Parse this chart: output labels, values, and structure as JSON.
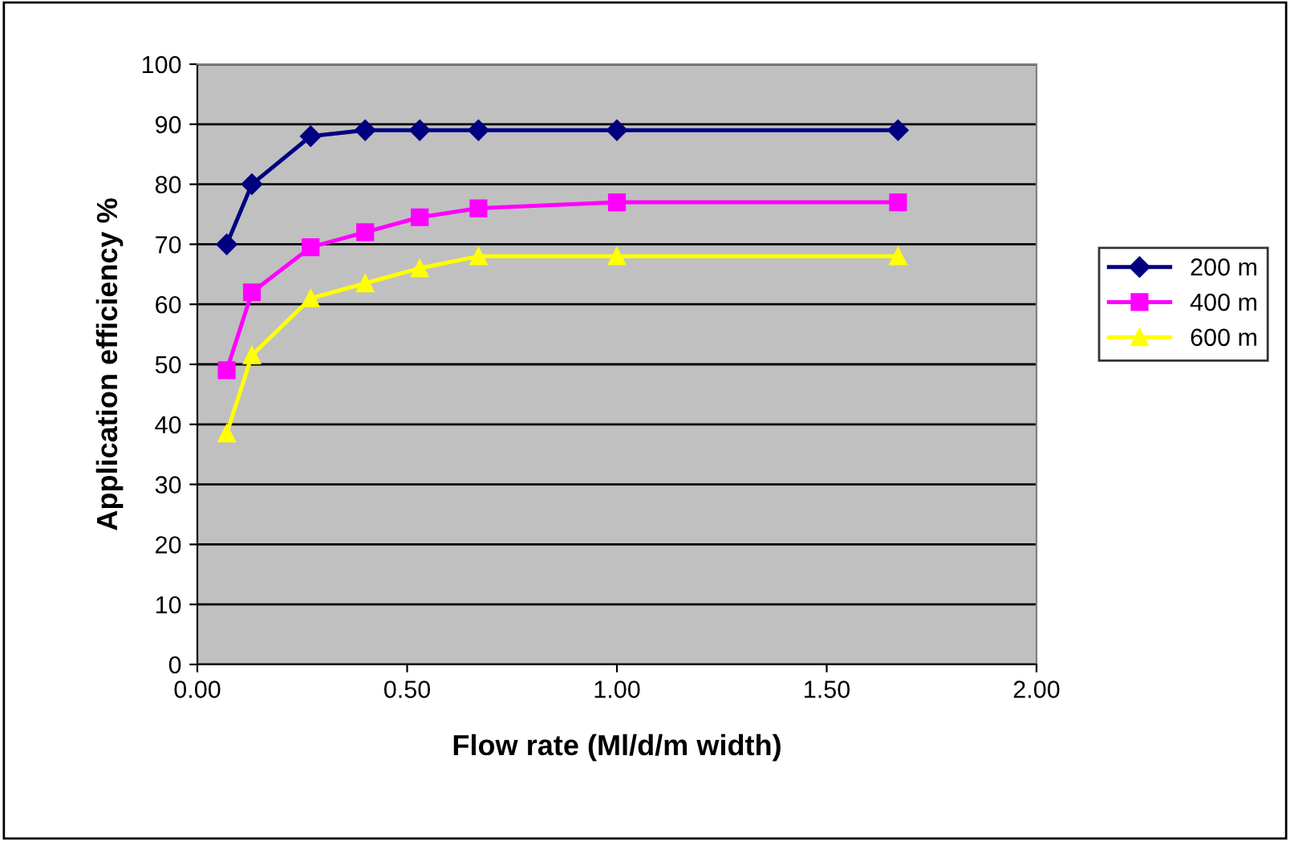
{
  "chart_data": {
    "type": "line",
    "xlabel": "Flow rate (Ml/d/m width)",
    "ylabel": "Application efficiency %",
    "x": [
      0.07,
      0.13,
      0.27,
      0.4,
      0.53,
      0.67,
      1.0,
      1.67
    ],
    "series": [
      {
        "name": "200 m",
        "color": "#000080",
        "marker": "diamond",
        "values": [
          70,
          80,
          88,
          89,
          89,
          89,
          89,
          89
        ]
      },
      {
        "name": "400 m",
        "color": "#ff00ff",
        "marker": "square",
        "values": [
          49,
          62,
          69.5,
          72,
          74.5,
          76,
          77,
          77
        ]
      },
      {
        "name": "600 m",
        "color": "#ffff00",
        "marker": "triangle",
        "values": [
          38.5,
          51.5,
          61,
          63.5,
          66,
          68,
          68,
          68
        ]
      }
    ],
    "xlim": [
      0,
      2
    ],
    "xticks": [
      {
        "value": 0,
        "label": "0.00"
      },
      {
        "value": 0.5,
        "label": "0.50"
      },
      {
        "value": 1,
        "label": "1.00"
      },
      {
        "value": 1.5,
        "label": "1.50"
      },
      {
        "value": 2,
        "label": "2.00"
      }
    ],
    "ylim": [
      0,
      100
    ],
    "yticks": [
      0,
      10,
      20,
      30,
      40,
      50,
      60,
      70,
      80,
      90,
      100
    ],
    "grid": "y",
    "legend": "right",
    "line_style": "solid"
  }
}
